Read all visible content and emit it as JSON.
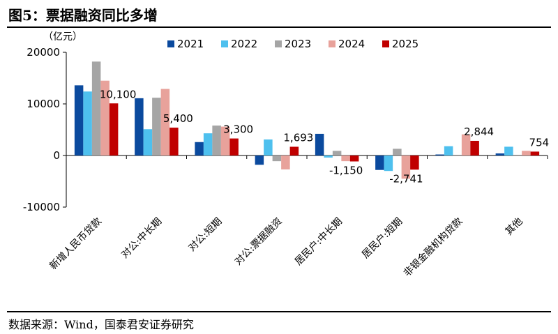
{
  "figure": {
    "title": "图5：票据融资同比多增",
    "source": "数据来源：Wind，国泰君安证券研究"
  },
  "chart_data": {
    "type": "bar",
    "title": "",
    "xlabel": "",
    "ylabel": "",
    "unit": "（亿元）",
    "ylim": [
      -10000,
      20000
    ],
    "yticks": [
      -10000,
      0,
      10000,
      20000
    ],
    "ytick_labels": [
      "-10000",
      "0",
      "10000",
      "20000"
    ],
    "grid": false,
    "legend_position": "top",
    "categories": [
      "新增人民币贷款",
      "对公:中长期",
      "对公:短期",
      "对公:票据融资",
      "居民户:中长期",
      "居民户:短期",
      "非银金融机构贷款",
      "其他"
    ],
    "series": [
      {
        "name": "2021",
        "color": "#0B4A9E",
        "values": [
          13600,
          11100,
          2600,
          -1800,
          4200,
          -2800,
          200,
          400
        ]
      },
      {
        "name": "2022",
        "color": "#4EC0EE",
        "values": [
          12400,
          5100,
          4300,
          3100,
          -400,
          -3000,
          1800,
          1700
        ]
      },
      {
        "name": "2023",
        "color": "#A5A5A5",
        "values": [
          18200,
          11200,
          5800,
          -1100,
          900,
          1300,
          0,
          -100
        ]
      },
      {
        "name": "2024",
        "color": "#E8A29B",
        "values": [
          14500,
          12900,
          5600,
          -2700,
          -1100,
          -4500,
          4100,
          900
        ]
      },
      {
        "name": "2025",
        "color": "#C00000",
        "values": [
          10100,
          5400,
          3300,
          1693,
          -1150,
          -2741,
          2844,
          754
        ]
      }
    ],
    "annotations": [
      {
        "category_index": 0,
        "text": "10,100"
      },
      {
        "category_index": 1,
        "text": "5,400"
      },
      {
        "category_index": 2,
        "text": "3,300"
      },
      {
        "category_index": 3,
        "text": "1,693"
      },
      {
        "category_index": 4,
        "text": "-1,150"
      },
      {
        "category_index": 5,
        "text": "-2,741"
      },
      {
        "category_index": 6,
        "text": "2,844"
      },
      {
        "category_index": 7,
        "text": "754"
      }
    ]
  }
}
